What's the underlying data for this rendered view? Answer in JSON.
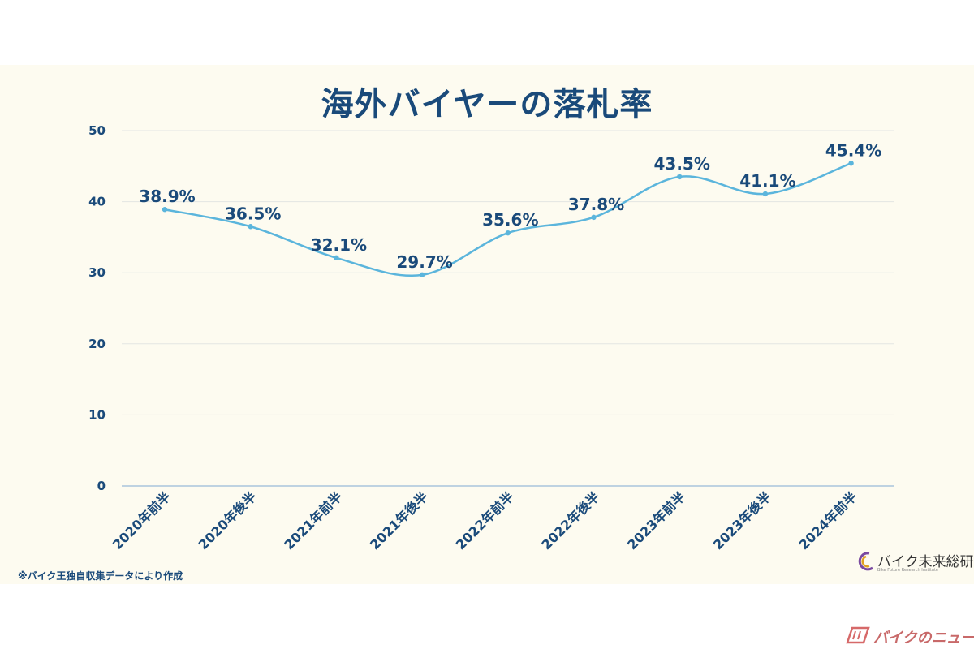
{
  "chart_data": {
    "type": "line",
    "title": "海外バイヤーの落札率",
    "categories": [
      "2020年前半",
      "2020年後半",
      "2021年前半",
      "2021年後半",
      "2022年前半",
      "2022年後半",
      "2023年前半",
      "2023年後半",
      "2024年前半"
    ],
    "values": [
      38.9,
      36.5,
      32.1,
      29.7,
      35.6,
      37.8,
      43.5,
      41.1,
      45.4
    ],
    "data_labels": [
      "38.9%",
      "36.5%",
      "32.1%",
      "29.7%",
      "35.6%",
      "37.8%",
      "43.5%",
      "41.1%",
      "45.4%"
    ],
    "yticks": [
      "0",
      "10",
      "20",
      "30",
      "40",
      "50"
    ],
    "ylim": [
      0,
      50
    ],
    "grid": true,
    "line_color": "#5bb5dc"
  },
  "footnote": "※バイク王独自収集データにより作成",
  "brand": {
    "name": "バイク未来総研",
    "tagline": "Bike Future Research Institute"
  },
  "watermark": {
    "text": "バイクのニュース"
  }
}
